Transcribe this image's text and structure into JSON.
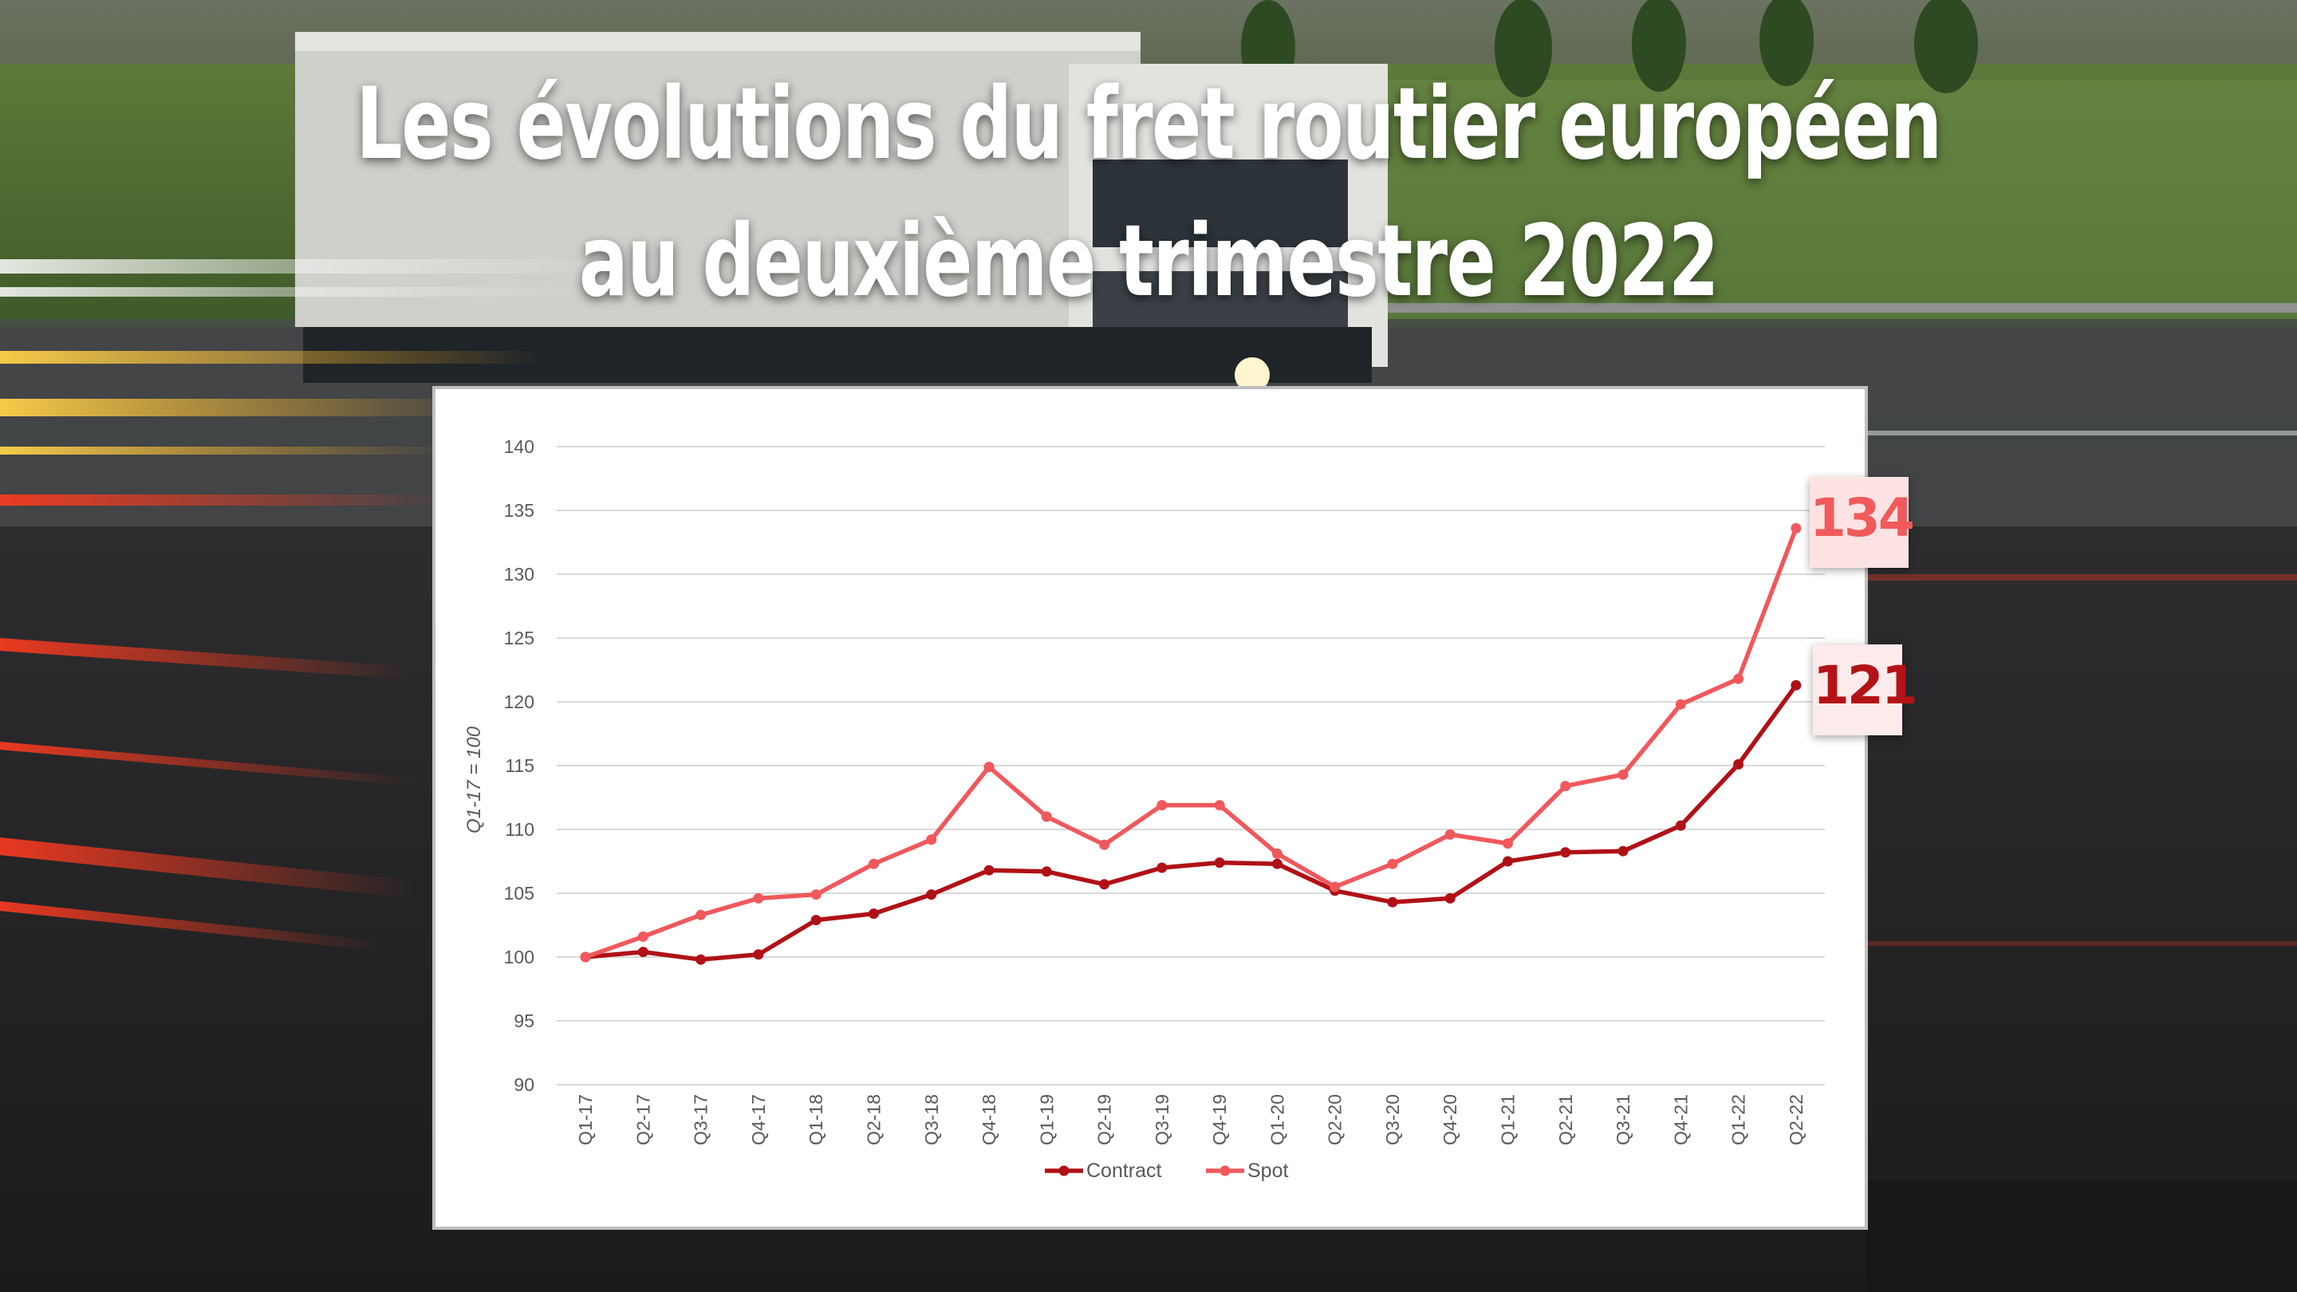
{
  "page": {
    "title_line1": "Les évolutions du fret routier européen",
    "title_line2": "au deuxième trimestre 2022",
    "background_image": "highway-truck-photo"
  },
  "callouts": {
    "spot_value": "134",
    "contract_value": "121"
  },
  "colors": {
    "contract": "#b01116",
    "spot": "#f0585c",
    "grid": "#d9d9d9",
    "callout_spot_text": "#f05a5a",
    "callout_contract_text": "#b31317"
  },
  "chart_data": {
    "type": "line",
    "title": "",
    "xlabel": "",
    "ylabel": "Q1-17 = 100",
    "ylim": [
      90,
      140
    ],
    "yticks": [
      90,
      95,
      100,
      105,
      110,
      115,
      120,
      125,
      130,
      135,
      140
    ],
    "grid": true,
    "legend_position": "bottom",
    "categories": [
      "Q1-17",
      "Q2-17",
      "Q3-17",
      "Q4-17",
      "Q1-18",
      "Q2-18",
      "Q3-18",
      "Q4-18",
      "Q1-19",
      "Q2-19",
      "Q3-19",
      "Q4-19",
      "Q1-20",
      "Q2-20",
      "Q3-20",
      "Q4-20",
      "Q1-21",
      "Q2-21",
      "Q3-21",
      "Q4-21",
      "Q1-22",
      "Q2-22"
    ],
    "series": [
      {
        "name": "Contract",
        "color": "#b01116",
        "values": [
          100,
          100.4,
          99.8,
          100.2,
          102.9,
          103.4,
          104.9,
          106.8,
          106.7,
          105.7,
          107,
          107.4,
          107.3,
          105.2,
          104.3,
          104.6,
          107.5,
          108.2,
          108.3,
          110.3,
          115.1,
          121.3
        ]
      },
      {
        "name": "Spot",
        "color": "#f0585c",
        "values": [
          100,
          101.6,
          103.3,
          104.6,
          104.9,
          107.3,
          109.2,
          114.9,
          111,
          108.8,
          111.9,
          111.9,
          108.1,
          105.5,
          107.3,
          109.6,
          108.9,
          113.4,
          114.3,
          119.8,
          121.8,
          133.6
        ]
      }
    ]
  }
}
